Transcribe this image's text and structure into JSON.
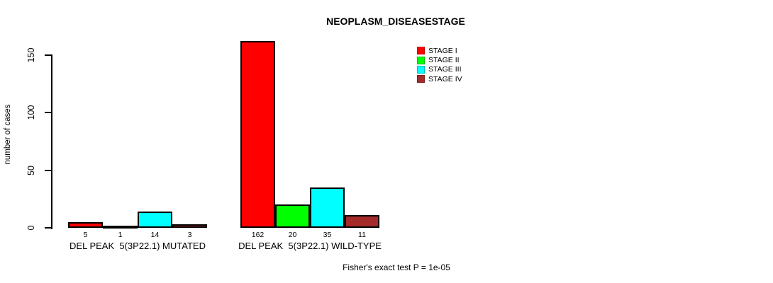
{
  "figure": {
    "background": "#ffffff",
    "text_color": "#000000"
  },
  "chart_data": {
    "type": "bar",
    "title": "NEOPLASM_DISEASESTAGE",
    "ylabel": "number of cases",
    "xlabel": "",
    "groups": [
      {
        "label": "DEL PEAK  5(3P22.1) MUTATED"
      },
      {
        "label": "DEL PEAK  5(3P22.1) WILD-TYPE"
      }
    ],
    "series": [
      {
        "name": "STAGE I",
        "color": "#ff0000",
        "values": [
          5,
          162
        ]
      },
      {
        "name": "STAGE II",
        "color": "#00ff00",
        "values": [
          1,
          20
        ]
      },
      {
        "name": "STAGE III",
        "color": "#00ffff",
        "values": [
          14,
          35
        ]
      },
      {
        "name": "STAGE IV",
        "color": "#a52a2a",
        "values": [
          3,
          11
        ]
      }
    ],
    "yticks": [
      0,
      50,
      100,
      150
    ],
    "ylim": [
      0,
      170
    ],
    "grid": false,
    "legend_position": "top-right",
    "annotation": "Fisher's exact test P = 1e-05"
  }
}
